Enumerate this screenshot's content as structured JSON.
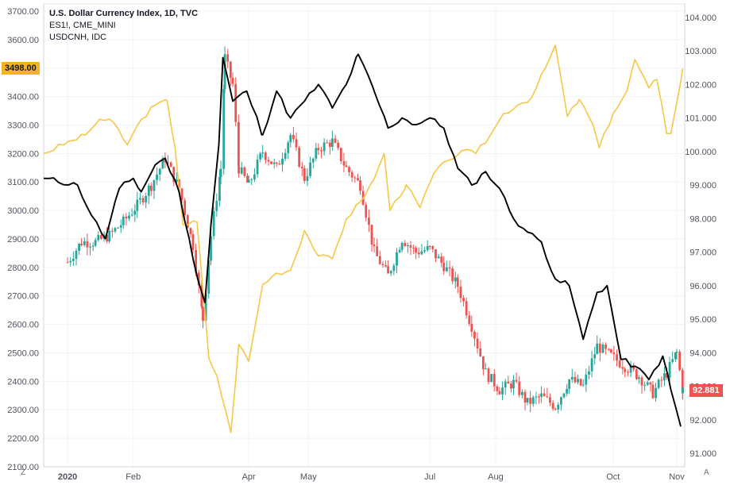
{
  "legend": {
    "title": "U.S. Dollar Currency Index, 1D, TVC",
    "line2": "ES1!, CME_MINI",
    "line3": "USDCNH, IDC"
  },
  "bottom_left_label": "Z",
  "bottom_right_label": "A",
  "colors": {
    "candle_up": "#26a69a",
    "candle_down": "#ef5350",
    "es_line": "#f6c744",
    "usdcnh_line": "#000000",
    "es_badge": "#f5b324",
    "dxy_badge": "#ef5350",
    "grid": "#f0f3fa",
    "axis_text": "#50535e"
  },
  "chart_data": {
    "type": "line",
    "title": "U.S. Dollar Currency Index, 1D, TVC",
    "x_tick_labels": [
      "2020",
      "Feb",
      "Apr",
      "May",
      "Jul",
      "Aug",
      "Oct",
      "Nov"
    ],
    "x_tick_dates": [
      "2020-01-01",
      "2020-02-03",
      "2020-04-01",
      "2020-05-01",
      "2020-07-01",
      "2020-08-03",
      "2020-10-01",
      "2020-11-02"
    ],
    "x_range": [
      "2019-12-20",
      "2020-11-06"
    ],
    "left_axis": {
      "ticks": [
        "2100.00",
        "2200.00",
        "2300.00",
        "2400.00",
        "2500.00",
        "2600.00",
        "2700.00",
        "2800.00",
        "2900.00",
        "3000.00",
        "3100.00",
        "3200.00",
        "3300.00",
        "3400.00",
        "3500.00",
        "3600.00",
        "3700.00"
      ],
      "range": [
        2100,
        3725
      ],
      "last_value_label": "3498.00",
      "last_value": 3498
    },
    "right_axis": {
      "ticks": [
        "91.000",
        "92.000",
        "93.000",
        "94.000",
        "95.000",
        "96.000",
        "97.000",
        "98.000",
        "99.000",
        "100.000",
        "101.000",
        "102.000",
        "103.000",
        "104.000"
      ],
      "range": [
        90.6,
        104.4
      ],
      "last_value_label": "92.881",
      "last_value": 92.881
    },
    "grid": true,
    "series": [
      {
        "name": "U.S. Dollar Currency Index",
        "type": "candlestick",
        "axis": "right",
        "points": [
          [
            "2020-01-01",
            96.7
          ],
          [
            "2020-01-08",
            97.3
          ],
          [
            "2020-01-15",
            97.3
          ],
          [
            "2020-01-22",
            97.5
          ],
          [
            "2020-01-29",
            97.9
          ],
          [
            "2020-02-05",
            98.4
          ],
          [
            "2020-02-12",
            99.0
          ],
          [
            "2020-02-19",
            99.8
          ],
          [
            "2020-02-26",
            98.9
          ],
          [
            "2020-03-04",
            97.2
          ],
          [
            "2020-03-09",
            95.0
          ],
          [
            "2020-03-13",
            97.5
          ],
          [
            "2020-03-18",
            99.5
          ],
          [
            "2020-03-20",
            102.8
          ],
          [
            "2020-03-24",
            102.0
          ],
          [
            "2020-03-27",
            99.5
          ],
          [
            "2020-04-01",
            99.0
          ],
          [
            "2020-04-08",
            100.0
          ],
          [
            "2020-04-15",
            99.5
          ],
          [
            "2020-04-22",
            100.5
          ],
          [
            "2020-04-29",
            99.2
          ],
          [
            "2020-05-06",
            100.1
          ],
          [
            "2020-05-13",
            100.3
          ],
          [
            "2020-05-20",
            99.5
          ],
          [
            "2020-05-27",
            99.0
          ],
          [
            "2020-06-03",
            97.0
          ],
          [
            "2020-06-10",
            96.3
          ],
          [
            "2020-06-17",
            97.4
          ],
          [
            "2020-06-24",
            97.0
          ],
          [
            "2020-07-01",
            97.1
          ],
          [
            "2020-07-08",
            96.6
          ],
          [
            "2020-07-15",
            96.0
          ],
          [
            "2020-07-22",
            94.8
          ],
          [
            "2020-07-29",
            93.4
          ],
          [
            "2020-08-05",
            92.9
          ],
          [
            "2020-08-12",
            93.1
          ],
          [
            "2020-08-19",
            92.5
          ],
          [
            "2020-08-26",
            92.7
          ],
          [
            "2020-09-02",
            92.4
          ],
          [
            "2020-09-09",
            93.2
          ],
          [
            "2020-09-16",
            93.0
          ],
          [
            "2020-09-23",
            94.2
          ],
          [
            "2020-09-30",
            93.9
          ],
          [
            "2020-10-07",
            93.6
          ],
          [
            "2020-10-14",
            93.3
          ],
          [
            "2020-10-21",
            92.8
          ],
          [
            "2020-10-28",
            93.4
          ],
          [
            "2020-11-02",
            94.0
          ],
          [
            "2020-11-05",
            92.881
          ]
        ]
      },
      {
        "name": "ES1!",
        "type": "line",
        "axis": "left",
        "points": [
          [
            "2019-12-20",
            3200
          ],
          [
            "2020-01-03",
            3245
          ],
          [
            "2020-01-10",
            3265
          ],
          [
            "2020-01-17",
            3320
          ],
          [
            "2020-01-24",
            3310
          ],
          [
            "2020-01-31",
            3230
          ],
          [
            "2020-02-07",
            3320
          ],
          [
            "2020-02-14",
            3370
          ],
          [
            "2020-02-20",
            3385
          ],
          [
            "2020-02-24",
            3220
          ],
          [
            "2020-02-28",
            2950
          ],
          [
            "2020-03-06",
            2960
          ],
          [
            "2020-03-12",
            2480
          ],
          [
            "2020-03-16",
            2420
          ],
          [
            "2020-03-23",
            2220
          ],
          [
            "2020-03-27",
            2530
          ],
          [
            "2020-04-01",
            2470
          ],
          [
            "2020-04-08",
            2740
          ],
          [
            "2020-04-15",
            2780
          ],
          [
            "2020-04-22",
            2790
          ],
          [
            "2020-04-29",
            2930
          ],
          [
            "2020-05-06",
            2840
          ],
          [
            "2020-05-13",
            2830
          ],
          [
            "2020-05-20",
            2970
          ],
          [
            "2020-05-27",
            3030
          ],
          [
            "2020-06-03",
            3110
          ],
          [
            "2020-06-08",
            3200
          ],
          [
            "2020-06-11",
            3000
          ],
          [
            "2020-06-19",
            3090
          ],
          [
            "2020-06-26",
            3010
          ],
          [
            "2020-07-03",
            3130
          ],
          [
            "2020-07-10",
            3175
          ],
          [
            "2020-07-17",
            3210
          ],
          [
            "2020-07-24",
            3200
          ],
          [
            "2020-07-31",
            3260
          ],
          [
            "2020-08-07",
            3340
          ],
          [
            "2020-08-14",
            3370
          ],
          [
            "2020-08-21",
            3395
          ],
          [
            "2020-08-28",
            3500
          ],
          [
            "2020-09-02",
            3580
          ],
          [
            "2020-09-08",
            3330
          ],
          [
            "2020-09-14",
            3390
          ],
          [
            "2020-09-21",
            3300
          ],
          [
            "2020-09-24",
            3220
          ],
          [
            "2020-10-01",
            3340
          ],
          [
            "2020-10-08",
            3420
          ],
          [
            "2020-10-12",
            3530
          ],
          [
            "2020-10-19",
            3430
          ],
          [
            "2020-10-23",
            3460
          ],
          [
            "2020-10-28",
            3270
          ],
          [
            "2020-10-30",
            3270
          ],
          [
            "2020-11-05",
            3498
          ]
        ]
      },
      {
        "name": "USDCNH",
        "type": "line",
        "axis": "right",
        "points": [
          [
            "2019-12-20",
            99.2
          ],
          [
            "2020-01-06",
            99.0
          ],
          [
            "2020-01-13",
            98.1
          ],
          [
            "2020-01-20",
            97.4
          ],
          [
            "2020-01-27",
            98.9
          ],
          [
            "2020-02-03",
            99.2
          ],
          [
            "2020-02-07",
            98.8
          ],
          [
            "2020-02-14",
            99.6
          ],
          [
            "2020-02-19",
            99.8
          ],
          [
            "2020-02-26",
            98.8
          ],
          [
            "2020-03-04",
            96.8
          ],
          [
            "2020-03-10",
            95.5
          ],
          [
            "2020-03-13",
            97.8
          ],
          [
            "2020-03-17",
            100.2
          ],
          [
            "2020-03-19",
            102.8
          ],
          [
            "2020-03-24",
            101.5
          ],
          [
            "2020-03-31",
            101.8
          ],
          [
            "2020-04-08",
            100.5
          ],
          [
            "2020-04-15",
            101.8
          ],
          [
            "2020-04-22",
            101.0
          ],
          [
            "2020-04-29",
            101.5
          ],
          [
            "2020-05-06",
            102.0
          ],
          [
            "2020-05-13",
            101.3
          ],
          [
            "2020-05-20",
            102.0
          ],
          [
            "2020-05-26",
            102.9
          ],
          [
            "2020-06-03",
            101.8
          ],
          [
            "2020-06-10",
            100.7
          ],
          [
            "2020-06-17",
            101.0
          ],
          [
            "2020-06-24",
            100.8
          ],
          [
            "2020-07-01",
            101.0
          ],
          [
            "2020-07-08",
            100.7
          ],
          [
            "2020-07-15",
            99.5
          ],
          [
            "2020-07-22",
            99.0
          ],
          [
            "2020-07-29",
            99.4
          ],
          [
            "2020-08-05",
            98.9
          ],
          [
            "2020-08-12",
            98.0
          ],
          [
            "2020-08-19",
            97.6
          ],
          [
            "2020-08-26",
            97.3
          ],
          [
            "2020-09-02",
            96.2
          ],
          [
            "2020-09-09",
            96.0
          ],
          [
            "2020-09-16",
            94.4
          ],
          [
            "2020-09-23",
            95.8
          ],
          [
            "2020-09-28",
            96.0
          ],
          [
            "2020-10-05",
            93.8
          ],
          [
            "2020-10-12",
            93.6
          ],
          [
            "2020-10-19",
            93.2
          ],
          [
            "2020-10-26",
            93.9
          ],
          [
            "2020-10-30",
            92.9
          ],
          [
            "2020-11-04",
            91.8
          ]
        ]
      }
    ]
  }
}
